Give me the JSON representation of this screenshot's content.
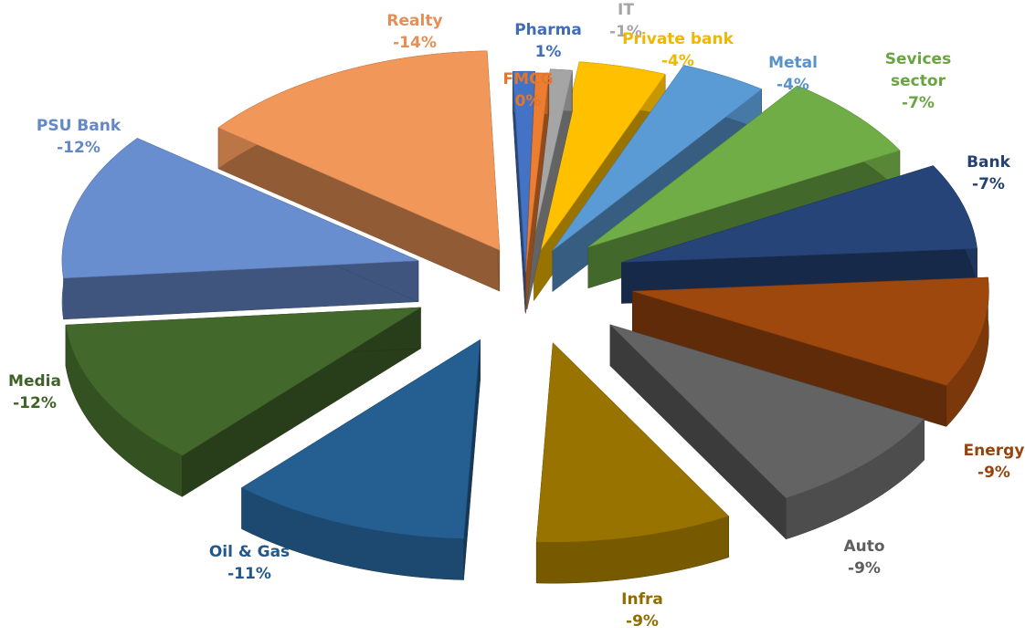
{
  "chart_data": {
    "type": "pie",
    "style": "3d-exploded",
    "title": "",
    "legend": "none",
    "slices": [
      {
        "name": "Pharma",
        "label": "1%",
        "value": 1,
        "color": "#4472C4"
      },
      {
        "name": "FMCG",
        "label": "0%",
        "value": 0,
        "color": "#ED7D31"
      },
      {
        "name": "IT",
        "label": "-1%",
        "value": -1,
        "color": "#A5A5A5"
      },
      {
        "name": "Private bank",
        "label": "-4%",
        "value": -4,
        "color": "#FFC000"
      },
      {
        "name": "Metal",
        "label": "-4%",
        "value": -4,
        "color": "#5B9BD5"
      },
      {
        "name": "Sevices sector",
        "label": "-7%",
        "value": -7,
        "color": "#70AD47"
      },
      {
        "name": "Bank",
        "label": "-7%",
        "value": -7,
        "color": "#264478"
      },
      {
        "name": "Energy",
        "label": "-9%",
        "value": -9,
        "color": "#9E480E"
      },
      {
        "name": "Auto",
        "label": "-9%",
        "value": -9,
        "color": "#636363"
      },
      {
        "name": "Infra",
        "label": "-9%",
        "value": -9,
        "color": "#997300"
      },
      {
        "name": "Oil & Gas",
        "label": "-11%",
        "value": -11,
        "color": "#255E91"
      },
      {
        "name": "Media",
        "label": "-12%",
        "value": -12,
        "color": "#43682B"
      },
      {
        "name": "PSU Bank",
        "label": "-12%",
        "value": -12,
        "color": "#698ED0"
      },
      {
        "name": "Realty",
        "label": "-14%",
        "value": -14,
        "color": "#F1975A"
      }
    ]
  }
}
